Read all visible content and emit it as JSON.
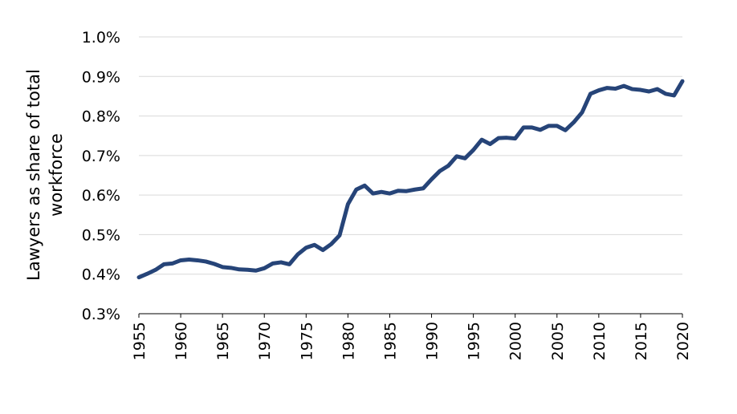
{
  "chart_data": {
    "type": "line",
    "title": "",
    "xlabel": "",
    "ylabel": "Lawyers as share of total workforce",
    "ylabel_lines": [
      "Lawyers as share of total",
      "workforce"
    ],
    "xlim": [
      1955,
      2020
    ],
    "ylim": [
      0.3,
      1.0
    ],
    "y_ticks": [
      0.3,
      0.4,
      0.5,
      0.6,
      0.7,
      0.8,
      0.9,
      1.0
    ],
    "y_tick_labels": [
      "0.3%",
      "0.4%",
      "0.5%",
      "0.6%",
      "0.7%",
      "0.8%",
      "0.9%",
      "1.0%"
    ],
    "x_ticks": [
      1955,
      1960,
      1965,
      1970,
      1975,
      1980,
      1985,
      1990,
      1995,
      2000,
      2005,
      2010,
      2015,
      2020
    ],
    "x_tick_labels": [
      "1955",
      "1960",
      "1965",
      "1970",
      "1975",
      "1980",
      "1985",
      "1990",
      "1995",
      "2000",
      "2005",
      "2010",
      "2015",
      "2020"
    ],
    "grid": "horizontal",
    "legend": "none",
    "series": [
      {
        "color": "#264478",
        "x": [
          1955,
          1956,
          1957,
          1958,
          1959,
          1960,
          1961,
          1962,
          1963,
          1964,
          1965,
          1966,
          1967,
          1968,
          1969,
          1970,
          1971,
          1972,
          1973,
          1974,
          1975,
          1976,
          1977,
          1978,
          1979,
          1980,
          1981,
          1982,
          1983,
          1984,
          1985,
          1986,
          1987,
          1988,
          1989,
          1990,
          1991,
          1992,
          1993,
          1994,
          1995,
          1996,
          1997,
          1998,
          1999,
          2000,
          2001,
          2002,
          2003,
          2004,
          2005,
          2006,
          2007,
          2008,
          2009,
          2010,
          2011,
          2012,
          2013,
          2014,
          2015,
          2016,
          2017,
          2018,
          2019,
          2020
        ],
        "y": [
          0.392,
          0.401,
          0.411,
          0.425,
          0.427,
          0.435,
          0.437,
          0.435,
          0.432,
          0.426,
          0.418,
          0.416,
          0.412,
          0.411,
          0.409,
          0.415,
          0.427,
          0.43,
          0.425,
          0.45,
          0.467,
          0.474,
          0.461,
          0.476,
          0.498,
          0.577,
          0.614,
          0.624,
          0.604,
          0.608,
          0.604,
          0.611,
          0.61,
          0.614,
          0.617,
          0.64,
          0.661,
          0.674,
          0.698,
          0.693,
          0.714,
          0.74,
          0.729,
          0.744,
          0.745,
          0.743,
          0.771,
          0.771,
          0.765,
          0.775,
          0.775,
          0.764,
          0.784,
          0.809,
          0.856,
          0.865,
          0.871,
          0.869,
          0.876,
          0.868,
          0.866,
          0.862,
          0.868,
          0.856,
          0.852,
          0.888
        ]
      }
    ]
  }
}
